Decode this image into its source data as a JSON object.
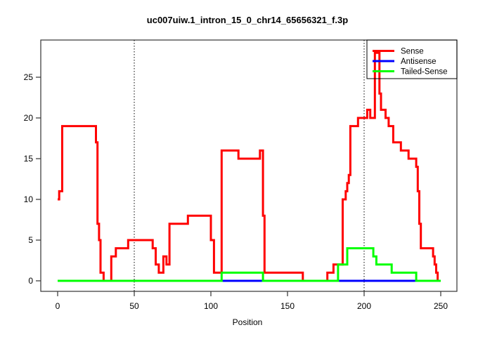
{
  "title": "uc007uiw.1_intron_15_0_chr14_65656321_f.3p",
  "chart_data": {
    "type": "line",
    "step": true,
    "title": "uc007uiw.1_intron_15_0_chr14_65656321_f.3p",
    "xlabel": "Position",
    "ylabel": "",
    "xlim": [
      0,
      250
    ],
    "ylim": [
      0,
      28
    ],
    "x_end": 250,
    "x_ticks": [
      0,
      50,
      100,
      150,
      200,
      250
    ],
    "y_ticks": [
      0,
      5,
      10,
      15,
      20,
      25
    ],
    "grid": false,
    "vlines": [
      50,
      200
    ],
    "vline_style": "dotted",
    "legend": {
      "position": "topright",
      "entries": [
        {
          "label": "Sense",
          "color": "#FF0000"
        },
        {
          "label": "Antisense",
          "color": "#0000FF"
        },
        {
          "label": "Tailed-Sense",
          "color": "#00FF00"
        }
      ]
    },
    "series": [
      {
        "name": "Sense",
        "color": "#FF0000",
        "points": [
          [
            0,
            10
          ],
          [
            1,
            11
          ],
          [
            3,
            19
          ],
          [
            25,
            17
          ],
          [
            26,
            7
          ],
          [
            27,
            5
          ],
          [
            28,
            1
          ],
          [
            30,
            0
          ],
          [
            35,
            3
          ],
          [
            38,
            4
          ],
          [
            46,
            5
          ],
          [
            62,
            4
          ],
          [
            64,
            2
          ],
          [
            66,
            1
          ],
          [
            69,
            3
          ],
          [
            71,
            2
          ],
          [
            73,
            7
          ],
          [
            85,
            8
          ],
          [
            100,
            5
          ],
          [
            102,
            1
          ],
          [
            107,
            16
          ],
          [
            118,
            15
          ],
          [
            132,
            16
          ],
          [
            134,
            8
          ],
          [
            135,
            1
          ],
          [
            160,
            0
          ],
          [
            176,
            1
          ],
          [
            180,
            2
          ],
          [
            186,
            10
          ],
          [
            188,
            11
          ],
          [
            189,
            12
          ],
          [
            190,
            13
          ],
          [
            191,
            19
          ],
          [
            196,
            20
          ],
          [
            202,
            21
          ],
          [
            204,
            20
          ],
          [
            207,
            28
          ],
          [
            210,
            23
          ],
          [
            211,
            21
          ],
          [
            214,
            20
          ],
          [
            216,
            19
          ],
          [
            219,
            17
          ],
          [
            224,
            16
          ],
          [
            229,
            15
          ],
          [
            234,
            14
          ],
          [
            235,
            11
          ],
          [
            236,
            7
          ],
          [
            237,
            4
          ],
          [
            245,
            3
          ],
          [
            246,
            2
          ],
          [
            247,
            1
          ],
          [
            248,
            0
          ]
        ]
      },
      {
        "name": "Antisense",
        "color": "#0000FF",
        "points": [
          [
            0,
            0
          ]
        ]
      },
      {
        "name": "Tailed-Sense",
        "color": "#00FF00",
        "points": [
          [
            0,
            0
          ],
          [
            107,
            1
          ],
          [
            134,
            0
          ],
          [
            183,
            2
          ],
          [
            189,
            4
          ],
          [
            206,
            3
          ],
          [
            208,
            2
          ],
          [
            218,
            1
          ],
          [
            234,
            0
          ]
        ]
      }
    ]
  }
}
